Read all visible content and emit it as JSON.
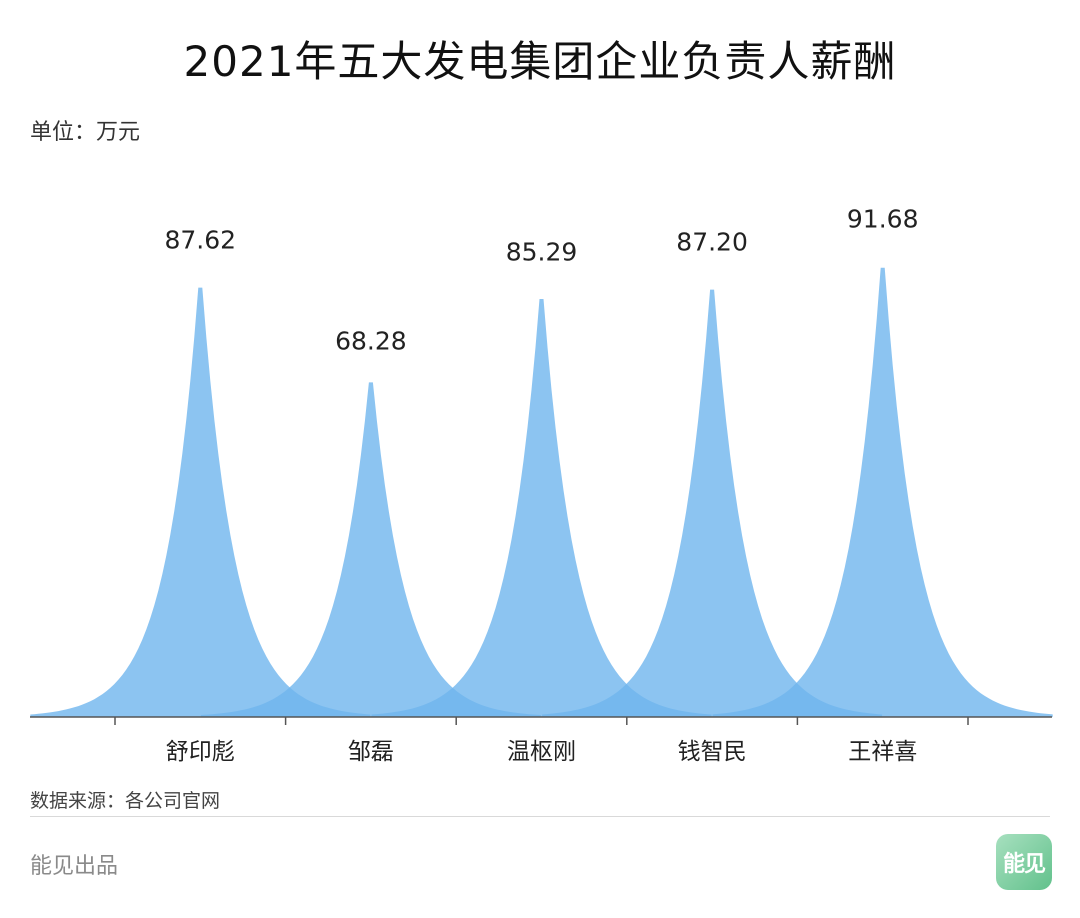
{
  "header": {
    "title": "2021年五大发电集团企业负责人薪酬",
    "unit": "单位：万元"
  },
  "footer": {
    "source": "数据来源：各公司官网",
    "credit": "能见出品",
    "logo_text": "能见"
  },
  "colors": {
    "spike_fill": "#6fb5ee",
    "axis": "#555555",
    "label": "#222222"
  },
  "chart_data": {
    "type": "area",
    "title": "2021年五大发电集团企业负责人薪酬",
    "ylabel": "单位：万元",
    "categories": [
      "舒印彪",
      "邹磊",
      "温枢刚",
      "钱智民",
      "王祥喜"
    ],
    "values": [
      87.62,
      68.28,
      85.29,
      87.2,
      91.68
    ],
    "value_labels": [
      "87.62",
      "68.28",
      "85.29",
      "87.20",
      "91.68"
    ],
    "ylim": [
      0,
      100
    ],
    "grid": false,
    "legend": "none"
  }
}
